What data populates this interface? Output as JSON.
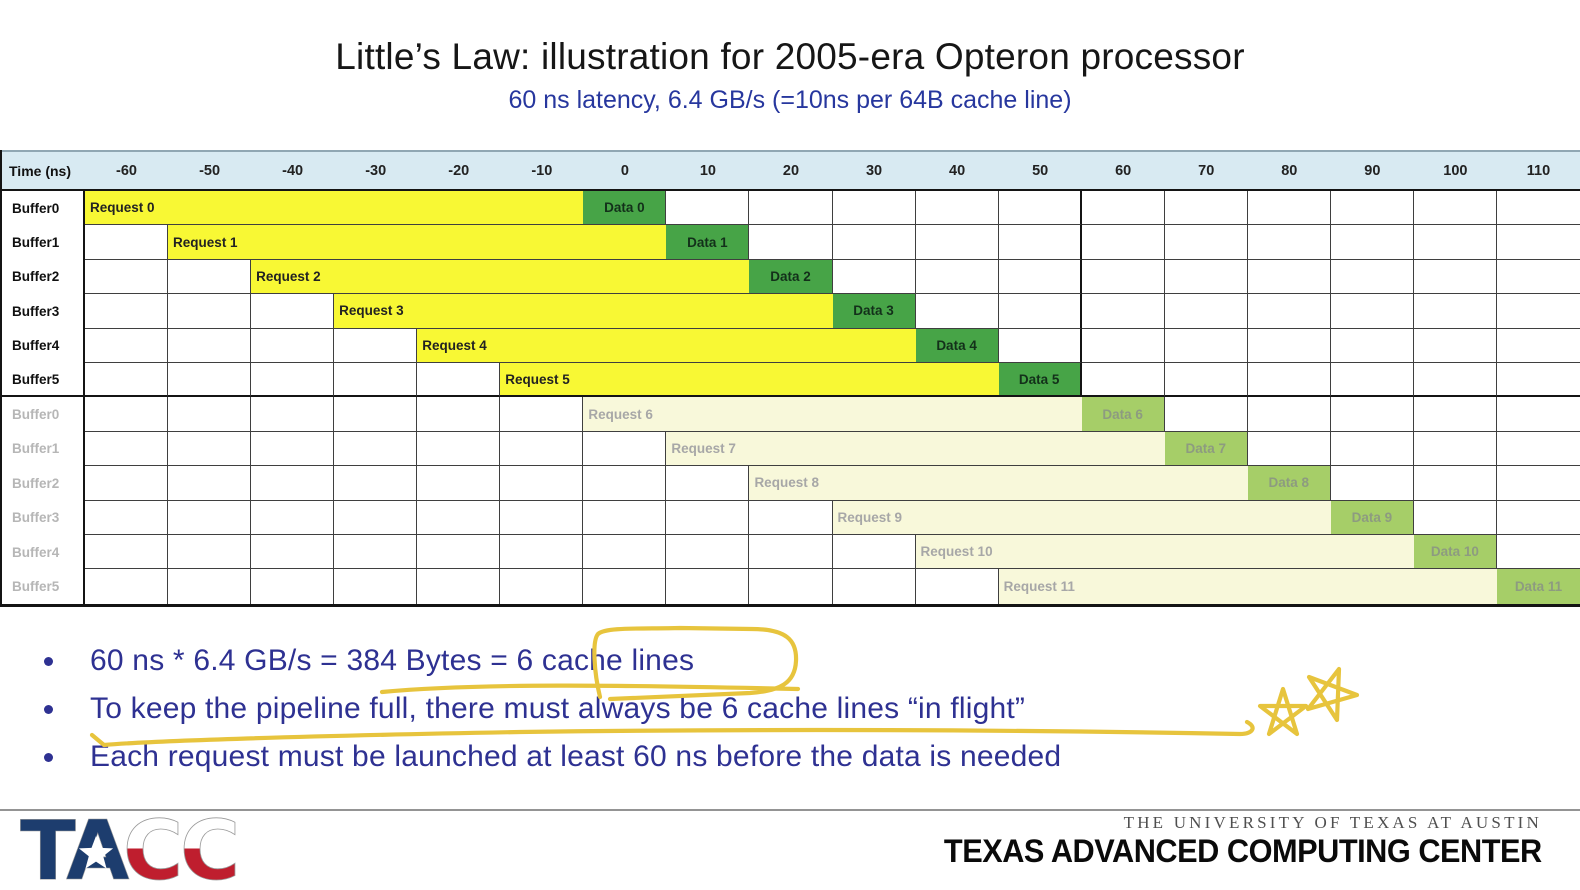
{
  "title": "Little’s Law: illustration for 2005-era Opteron processor",
  "subtitle": "60 ns latency, 6.4 GB/s (=10ns per 64B cache line)",
  "colors": {
    "header_bg": "#d8eaf2",
    "request_fill": "#f8f834",
    "data_fill": "#47a447",
    "request_faded_fill": "#f8f8da",
    "data_faded_fill": "#a6ce68",
    "grid_line": "#3f3f3f",
    "thick_line": "#141414",
    "bullet_navy": "#2e3192",
    "subtitle_blue": "#27379e",
    "annotation_yellow": "#e7c43d",
    "logo_navy": "#1d3d6e",
    "logo_red": "#bf1e2e",
    "footer_gray": "#949494"
  },
  "timeline": {
    "corner_label": "Time (ns)",
    "ticks": [
      "-60",
      "-50",
      "-40",
      "-30",
      "-20",
      "-10",
      "0",
      "10",
      "20",
      "30",
      "40",
      "50",
      "60",
      "70",
      "80",
      "90",
      "100",
      "110"
    ],
    "request_span_ns": 60,
    "data_span_ns": 10,
    "rows": [
      {
        "buffer": "Buffer0",
        "request": "Request 0",
        "data": "Data 0",
        "start": 0,
        "faded": false
      },
      {
        "buffer": "Buffer1",
        "request": "Request 1",
        "data": "Data 1",
        "start": 1,
        "faded": false
      },
      {
        "buffer": "Buffer2",
        "request": "Request 2",
        "data": "Data 2",
        "start": 2,
        "faded": false
      },
      {
        "buffer": "Buffer3",
        "request": "Request 3",
        "data": "Data 3",
        "start": 3,
        "faded": false
      },
      {
        "buffer": "Buffer4",
        "request": "Request 4",
        "data": "Data 4",
        "start": 4,
        "faded": false
      },
      {
        "buffer": "Buffer5",
        "request": "Request 5",
        "data": "Data 5",
        "start": 5,
        "faded": false
      },
      {
        "buffer": "Buffer0",
        "request": "Request 6",
        "data": "Data 6",
        "start": 6,
        "faded": true
      },
      {
        "buffer": "Buffer1",
        "request": "Request 7",
        "data": "Data 7",
        "start": 7,
        "faded": true
      },
      {
        "buffer": "Buffer2",
        "request": "Request 8",
        "data": "Data 8",
        "start": 8,
        "faded": true
      },
      {
        "buffer": "Buffer3",
        "request": "Request 9",
        "data": "Data 9",
        "start": 9,
        "faded": true
      },
      {
        "buffer": "Buffer4",
        "request": "Request 10",
        "data": "Data 10",
        "start": 10,
        "faded": true
      },
      {
        "buffer": "Buffer5",
        "request": "Request 11",
        "data": "Data 11",
        "start": 11,
        "faded": true
      }
    ]
  },
  "bullets": [
    "60 ns * 6.4 GB/s = 384 Bytes = 6 cache lines",
    "To keep the pipeline full, there must always be 6 cache lines “in flight”",
    "Each request must be launched at least 60 ns before the data is needed"
  ],
  "footer": {
    "logo_text": "TACC",
    "university": "THE UNIVERSITY OF TEXAS AT AUSTIN",
    "center": "TEXAS ADVANCED COMPUTING CENTER"
  }
}
